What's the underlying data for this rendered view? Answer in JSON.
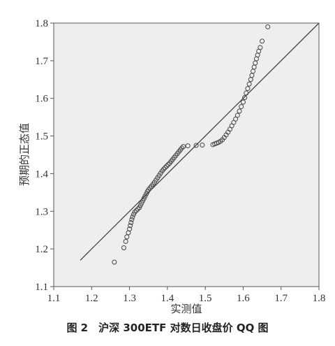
{
  "caption": "图 2　沪深 300ETF 对数日收盘价 QQ 图",
  "chart_data": {
    "type": "scatter",
    "xlabel": "实测值",
    "ylabel": "预期的正态值",
    "xlim": [
      1.1,
      1.8
    ],
    "ylim": [
      1.1,
      1.8
    ],
    "xticks": [
      "1.1",
      "1.2",
      "1.3",
      "1.4",
      "1.5",
      "1.6",
      "1.7",
      "1.8"
    ],
    "yticks": [
      "1.1",
      "1.2",
      "1.3",
      "1.4",
      "1.5",
      "1.6",
      "1.7",
      "1.8"
    ],
    "grid": false,
    "plot_background": "#eeeeee",
    "marker_color": "#444444",
    "reference_line": {
      "x": [
        1.17,
        1.8
      ],
      "y": [
        1.17,
        1.8
      ],
      "color": "#444444"
    },
    "points": [
      [
        1.26,
        1.165
      ],
      [
        1.285,
        1.203
      ],
      [
        1.29,
        1.22
      ],
      [
        1.293,
        1.232
      ],
      [
        1.297,
        1.243
      ],
      [
        1.3,
        1.253
      ],
      [
        1.302,
        1.262
      ],
      [
        1.304,
        1.27
      ],
      [
        1.306,
        1.278
      ],
      [
        1.308,
        1.285
      ],
      [
        1.311,
        1.292
      ],
      [
        1.314,
        1.298
      ],
      [
        1.318,
        1.302
      ],
      [
        1.322,
        1.306
      ],
      [
        1.326,
        1.31
      ],
      [
        1.329,
        1.316
      ],
      [
        1.332,
        1.322
      ],
      [
        1.335,
        1.328
      ],
      [
        1.338,
        1.334
      ],
      [
        1.341,
        1.34
      ],
      [
        1.344,
        1.346
      ],
      [
        1.347,
        1.352
      ],
      [
        1.35,
        1.357
      ],
      [
        1.354,
        1.362
      ],
      [
        1.358,
        1.367
      ],
      [
        1.362,
        1.372
      ],
      [
        1.366,
        1.377
      ],
      [
        1.37,
        1.383
      ],
      [
        1.374,
        1.389
      ],
      [
        1.378,
        1.395
      ],
      [
        1.382,
        1.401
      ],
      [
        1.386,
        1.407
      ],
      [
        1.39,
        1.412
      ],
      [
        1.394,
        1.416
      ],
      [
        1.398,
        1.42
      ],
      [
        1.402,
        1.424
      ],
      [
        1.406,
        1.428
      ],
      [
        1.41,
        1.433
      ],
      [
        1.414,
        1.438
      ],
      [
        1.418,
        1.443
      ],
      [
        1.422,
        1.448
      ],
      [
        1.426,
        1.453
      ],
      [
        1.43,
        1.458
      ],
      [
        1.434,
        1.463
      ],
      [
        1.438,
        1.468
      ],
      [
        1.442,
        1.472
      ],
      [
        1.454,
        1.474
      ],
      [
        1.476,
        1.475
      ],
      [
        1.492,
        1.476
      ],
      [
        1.52,
        1.477
      ],
      [
        1.525,
        1.479
      ],
      [
        1.53,
        1.481
      ],
      [
        1.535,
        1.483
      ],
      [
        1.54,
        1.486
      ],
      [
        1.545,
        1.49
      ],
      [
        1.55,
        1.496
      ],
      [
        1.555,
        1.503
      ],
      [
        1.56,
        1.51
      ],
      [
        1.565,
        1.518
      ],
      [
        1.57,
        1.527
      ],
      [
        1.575,
        1.536
      ],
      [
        1.58,
        1.545
      ],
      [
        1.585,
        1.555
      ],
      [
        1.59,
        1.566
      ],
      [
        1.595,
        1.578
      ],
      [
        1.6,
        1.59
      ],
      [
        1.604,
        1.602
      ],
      [
        1.608,
        1.614
      ],
      [
        1.612,
        1.626
      ],
      [
        1.616,
        1.638
      ],
      [
        1.62,
        1.65
      ],
      [
        1.623,
        1.661
      ],
      [
        1.626,
        1.672
      ],
      [
        1.629,
        1.683
      ],
      [
        1.632,
        1.694
      ],
      [
        1.635,
        1.705
      ],
      [
        1.638,
        1.715
      ],
      [
        1.641,
        1.725
      ],
      [
        1.645,
        1.735
      ],
      [
        1.65,
        1.752
      ],
      [
        1.665,
        1.79
      ]
    ]
  }
}
